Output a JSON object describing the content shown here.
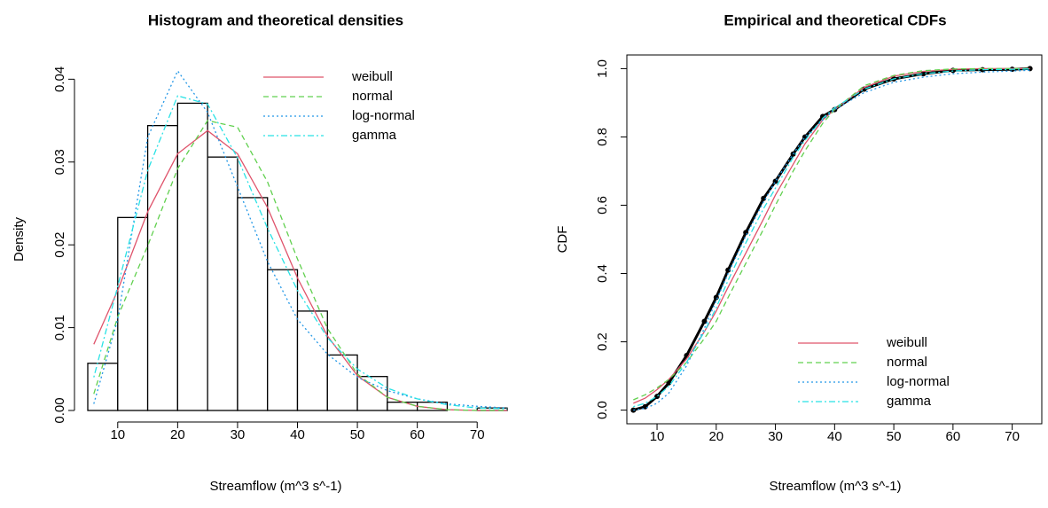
{
  "chart_data": [
    {
      "type": "histogram",
      "title": "Histogram and theoretical densities",
      "x_label": "Streamflow (m^3 s^-1)",
      "y_label": "Density",
      "bins": [
        5,
        10,
        15,
        20,
        25,
        30,
        35,
        40,
        45,
        50,
        55,
        60,
        65,
        70,
        75
      ],
      "values": [
        0.0057,
        0.0233,
        0.0344,
        0.0371,
        0.0306,
        0.0257,
        0.017,
        0.012,
        0.0067,
        0.0041,
        0.001,
        0.001,
        0.0,
        0.0003
      ],
      "x": [
        6,
        10,
        15,
        20,
        25,
        30,
        35,
        40,
        45,
        50,
        55,
        60,
        65,
        70,
        75
      ],
      "series": [
        {
          "name": "weibull",
          "color": "#df536b",
          "linestyle": "solid",
          "values": [
            0.008,
            0.0145,
            0.024,
            0.031,
            0.0338,
            0.031,
            0.0245,
            0.016,
            0.009,
            0.0042,
            0.0016,
            0.0005,
            0.0001,
            0.0,
            0.0
          ]
        },
        {
          "name": "normal",
          "color": "#61d04f",
          "linestyle": "dashed",
          "values": [
            0.002,
            0.0113,
            0.0199,
            0.0292,
            0.035,
            0.0342,
            0.0276,
            0.0183,
            0.0099,
            0.0044,
            0.0016,
            0.0005,
            0.0001,
            0.0,
            0.0
          ]
        },
        {
          "name": "log-normal",
          "color": "#2297e6",
          "linestyle": "dotted",
          "values": [
            0.0008,
            0.011,
            0.033,
            0.041,
            0.036,
            0.027,
            0.018,
            0.011,
            0.0068,
            0.004,
            0.0024,
            0.0014,
            0.0008,
            0.0005,
            0.0003
          ]
        },
        {
          "name": "gamma",
          "color": "#28e2e5",
          "linestyle": "dotdash",
          "values": [
            0.004,
            0.015,
            0.029,
            0.038,
            0.037,
            0.0305,
            0.022,
            0.0145,
            0.0088,
            0.005,
            0.0027,
            0.0014,
            0.0007,
            0.0003,
            0.0002
          ]
        }
      ],
      "xlim": [
        5,
        75
      ],
      "ylim": [
        0,
        0.041
      ],
      "xticks": [
        10,
        20,
        30,
        40,
        50,
        60,
        70
      ],
      "yticks": [
        {
          "value": 0,
          "label": "0.00"
        },
        0.01,
        0.02,
        0.03,
        0.04
      ],
      "legend": "top-right",
      "box": false
    },
    {
      "type": "cdf",
      "title": "Empirical and theoretical CDFs",
      "x_label": "Streamflow (m^3 s^-1)",
      "y_label": "CDF",
      "x": [
        6,
        8,
        10,
        12,
        15,
        18,
        20,
        22,
        25,
        28,
        30,
        33,
        35,
        38,
        40,
        45,
        50,
        55,
        60,
        65,
        70,
        73
      ],
      "values": [
        0.0,
        0.01,
        0.04,
        0.08,
        0.16,
        0.26,
        0.33,
        0.41,
        0.52,
        0.62,
        0.67,
        0.75,
        0.8,
        0.86,
        0.88,
        0.94,
        0.97,
        0.985,
        0.995,
        0.997,
        0.998,
        1.0
      ],
      "series": [
        {
          "name": "weibull",
          "color": "#df536b",
          "linestyle": "solid",
          "values": [
            0.02,
            0.035,
            0.06,
            0.09,
            0.15,
            0.23,
            0.29,
            0.36,
            0.46,
            0.56,
            0.63,
            0.72,
            0.78,
            0.85,
            0.88,
            0.945,
            0.978,
            0.992,
            0.998,
            1.0,
            1.0,
            1.0
          ]
        },
        {
          "name": "normal",
          "color": "#61d04f",
          "linestyle": "dashed",
          "values": [
            0.03,
            0.045,
            0.065,
            0.09,
            0.14,
            0.21,
            0.26,
            0.33,
            0.43,
            0.53,
            0.6,
            0.7,
            0.76,
            0.84,
            0.88,
            0.95,
            0.98,
            0.994,
            0.999,
            1.0,
            1.0,
            1.0
          ]
        },
        {
          "name": "log-normal",
          "color": "#2297e6",
          "linestyle": "dotted",
          "values": [
            0.0,
            0.005,
            0.02,
            0.05,
            0.13,
            0.24,
            0.32,
            0.4,
            0.51,
            0.61,
            0.67,
            0.75,
            0.8,
            0.85,
            0.88,
            0.93,
            0.96,
            0.975,
            0.985,
            0.99,
            0.993,
            0.995
          ]
        },
        {
          "name": "gamma",
          "color": "#28e2e5",
          "linestyle": "dotdash",
          "values": [
            0.01,
            0.02,
            0.04,
            0.07,
            0.14,
            0.23,
            0.3,
            0.38,
            0.49,
            0.59,
            0.65,
            0.74,
            0.79,
            0.855,
            0.885,
            0.94,
            0.97,
            0.985,
            0.993,
            0.997,
            0.998,
            0.999
          ]
        }
      ],
      "xlim": [
        4.9,
        75
      ],
      "ylim": [
        -0.04,
        1.04
      ],
      "xticks": [
        10,
        20,
        30,
        40,
        50,
        60,
        70
      ],
      "yticks": [
        {
          "value": 0,
          "label": "0.0"
        },
        0.2,
        0.4,
        0.6,
        0.8,
        {
          "value": 1,
          "label": "1.0"
        }
      ],
      "legend": "bottom-right",
      "box": true
    }
  ]
}
